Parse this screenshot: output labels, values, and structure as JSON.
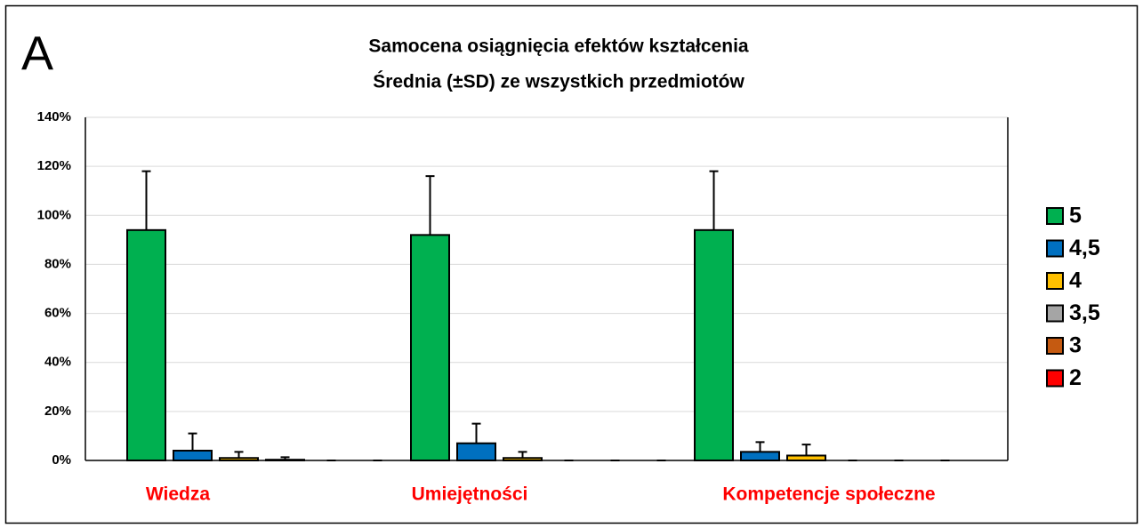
{
  "chart_data": {
    "type": "bar",
    "panel_label": "A",
    "title": "Samocena osiągnięcia efektów kształcenia",
    "subtitle": "Średnia (±SD) ze wszystkich przedmiotów",
    "categories": [
      "Wiedza",
      "Umiejętności",
      "Kompetencje społeczne"
    ],
    "series": [
      {
        "name": "5",
        "color": "#00b050",
        "values": [
          94,
          92,
          94
        ],
        "errors": [
          24,
          24,
          24
        ]
      },
      {
        "name": "4,5",
        "color": "#0070c0",
        "values": [
          4,
          7,
          3.5
        ],
        "errors": [
          7,
          8,
          4
        ]
      },
      {
        "name": "4",
        "color": "#ffc000",
        "values": [
          1,
          1,
          2
        ],
        "errors": [
          2.5,
          2.5,
          4.5
        ]
      },
      {
        "name": "3,5",
        "color": "#a5a5a5",
        "values": [
          0.3,
          0,
          0
        ],
        "errors": [
          1,
          0,
          0
        ]
      },
      {
        "name": "3",
        "color": "#c55a11",
        "values": [
          0,
          0,
          0
        ],
        "errors": [
          0,
          0,
          0
        ]
      },
      {
        "name": "2",
        "color": "#ff0000",
        "values": [
          0,
          0,
          0
        ],
        "errors": [
          0,
          0,
          0
        ]
      }
    ],
    "ylim": [
      0,
      140
    ],
    "yticks": [
      {
        "value": 0,
        "label": "0%"
      },
      {
        "value": 20,
        "label": "20%"
      },
      {
        "value": 40,
        "label": "40%"
      },
      {
        "value": 60,
        "label": "60%"
      },
      {
        "value": 80,
        "label": "80%"
      },
      {
        "value": 100,
        "label": "100%"
      },
      {
        "value": 120,
        "label": "120%"
      },
      {
        "value": 140,
        "label": "140%"
      }
    ],
    "grid": true,
    "legend": "right",
    "category_label_color": "#ff0000"
  }
}
